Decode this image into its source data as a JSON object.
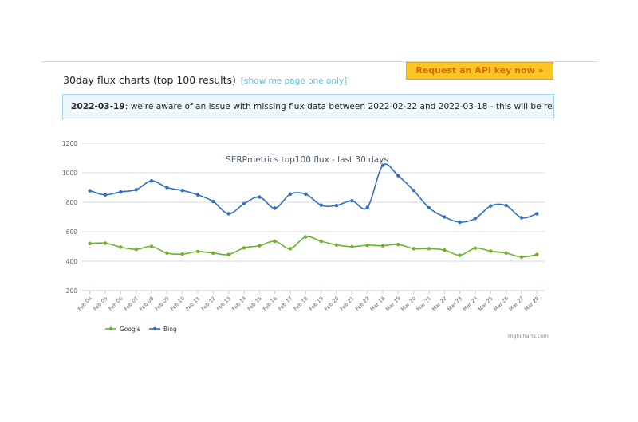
{
  "api_button": {
    "label": "Request an API key now »"
  },
  "heading": {
    "title": "30day flux charts (top 100 results)",
    "link": "[show me page one only]"
  },
  "notice": {
    "date": "2022-03-19",
    "text": ": we're aware of an issue with missing flux data between 2022-02-22 and 2022-03-18 - this will be reinstated ASAP."
  },
  "credit": "Highcharts.com",
  "chart_data": {
    "type": "line",
    "title": "SERPmetrics top100 flux - last 30 days",
    "categories": [
      "Feb 04",
      "Feb 05",
      "Feb 06",
      "Feb 07",
      "Feb 08",
      "Feb 09",
      "Feb 10",
      "Feb 11",
      "Feb 12",
      "Feb 13",
      "Feb 14",
      "Feb 15",
      "Feb 16",
      "Feb 17",
      "Feb 18",
      "Feb 19",
      "Feb 20",
      "Feb 21",
      "Feb 22",
      "Mar 18",
      "Mar 19",
      "Mar 20",
      "Mar 21",
      "Mar 22",
      "Mar 23",
      "Mar 24",
      "Mar 25",
      "Mar 26",
      "Mar 27",
      "Mar 28"
    ],
    "ylim": [
      200,
      1200
    ],
    "yticks": [
      "200",
      "400",
      "600",
      "800",
      "1000",
      "1200"
    ],
    "grid": true,
    "legend_placement": "bottom-left",
    "series": [
      {
        "name": "Google",
        "color": "#6bb52c",
        "values": [
          520,
          522,
          495,
          480,
          500,
          455,
          448,
          465,
          455,
          445,
          490,
          505,
          535,
          485,
          565,
          535,
          510,
          498,
          508,
          505,
          513,
          485,
          485,
          475,
          440,
          488,
          468,
          455,
          428,
          445
        ]
      },
      {
        "name": "Bing",
        "color": "#2f6fc2",
        "values": [
          878,
          850,
          870,
          885,
          945,
          900,
          880,
          850,
          805,
          722,
          790,
          835,
          760,
          855,
          855,
          780,
          778,
          810,
          765,
          1050,
          980,
          880,
          762,
          700,
          665,
          690,
          775,
          778,
          695,
          722
        ]
      }
    ]
  }
}
